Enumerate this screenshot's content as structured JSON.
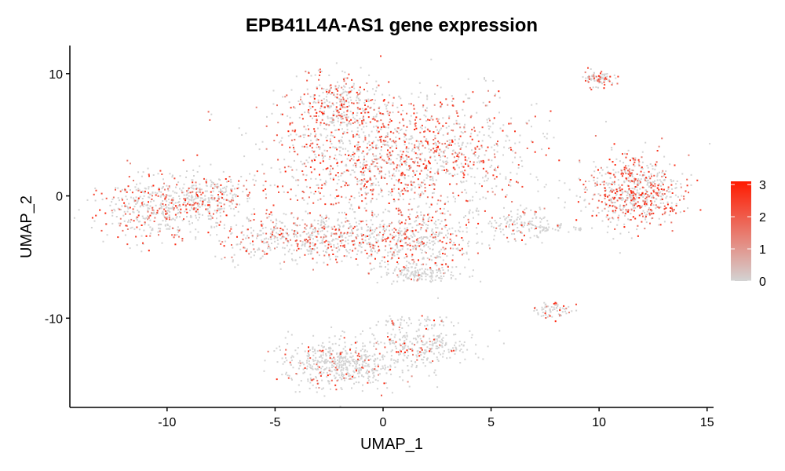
{
  "chart_data": {
    "type": "scatter",
    "title": "EPB41L4A-AS1 gene expression",
    "xlabel": "UMAP_1",
    "ylabel": "UMAP_2",
    "xlim": [
      -14.5,
      15.3
    ],
    "ylim": [
      -17.3,
      12.3
    ],
    "x_ticks": [
      -10,
      -5,
      0,
      5,
      10,
      15
    ],
    "x_tick_labels": [
      "-10",
      "-5",
      "0",
      "5",
      "10",
      "15"
    ],
    "y_ticks": [
      -10,
      0,
      10
    ],
    "y_tick_labels": [
      "-10",
      "0",
      "10"
    ],
    "color_scale": {
      "low_color": "#d3d3d3",
      "high_color": "#ff1a00",
      "min": 0,
      "max": 3.1,
      "breaks": [
        0,
        1,
        2,
        3
      ],
      "labels": [
        "0",
        "1",
        "2",
        "3"
      ]
    },
    "clusters": [
      {
        "name": "top-center",
        "x": 0.5,
        "y": 3.3,
        "sx": 3.0,
        "sy": 2.6,
        "n": 1500,
        "density": 0.45
      },
      {
        "name": "top-peak",
        "x": -2.0,
        "y": 7.5,
        "sx": 1.0,
        "sy": 1.2,
        "n": 300,
        "density": 0.4
      },
      {
        "name": "left-lobe",
        "x": -10.2,
        "y": -0.9,
        "sx": 1.5,
        "sy": 1.3,
        "n": 500,
        "density": 0.3
      },
      {
        "name": "left-upper",
        "x": -8.0,
        "y": 0.1,
        "sx": 1.0,
        "sy": 0.8,
        "n": 220,
        "density": 0.3
      },
      {
        "name": "mid-bridge",
        "x": -3.5,
        "y": -3.4,
        "sx": 2.0,
        "sy": 1.0,
        "n": 550,
        "density": 0.3
      },
      {
        "name": "center-lower",
        "x": 1.3,
        "y": -3.5,
        "sx": 1.5,
        "sy": 1.3,
        "n": 450,
        "density": 0.25
      },
      {
        "name": "bottom-tail",
        "x": 1.8,
        "y": -6.3,
        "sx": 0.9,
        "sy": 0.4,
        "n": 150,
        "density": 0.05
      },
      {
        "name": "right-blob",
        "x": 11.6,
        "y": 0.3,
        "sx": 1.1,
        "sy": 1.4,
        "n": 650,
        "density": 0.45
      },
      {
        "name": "top-right-small",
        "x": 10.0,
        "y": 9.7,
        "sx": 0.35,
        "sy": 0.35,
        "n": 90,
        "density": 0.4
      },
      {
        "name": "mid-right-small",
        "x": 6.2,
        "y": -2.3,
        "sx": 0.8,
        "sy": 0.7,
        "n": 140,
        "density": 0.2
      },
      {
        "name": "mid-right-stream",
        "x": 8.0,
        "y": -2.5,
        "sx": 0.9,
        "sy": 0.2,
        "n": 40,
        "density": 0.1
      },
      {
        "name": "right-low-small",
        "x": 7.8,
        "y": -9.3,
        "sx": 0.5,
        "sy": 0.3,
        "n": 70,
        "density": 0.2
      },
      {
        "name": "bottom-cluster",
        "x": -1.8,
        "y": -13.7,
        "sx": 1.4,
        "sy": 1.0,
        "n": 550,
        "density": 0.15
      },
      {
        "name": "bottom-right-arm",
        "x": 1.8,
        "y": -12.3,
        "sx": 1.2,
        "sy": 0.8,
        "n": 250,
        "density": 0.15
      },
      {
        "name": "bottom-thin-arm",
        "x": 1.5,
        "y": -10.3,
        "sx": 1.0,
        "sy": 0.3,
        "n": 60,
        "density": 0.1
      }
    ]
  }
}
